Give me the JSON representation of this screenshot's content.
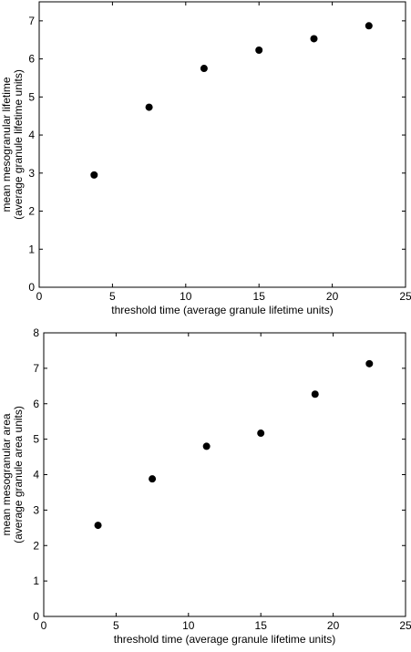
{
  "chart_data": [
    {
      "type": "scatter",
      "xlabel": "threshold time (average granule lifetime units)",
      "ylabel_lines": [
        "mean mesogranular lifetime",
        "(average granule lifetime units)"
      ],
      "xlim": [
        0,
        25
      ],
      "ylim": [
        0,
        7.5
      ],
      "xticks": [
        0,
        5,
        10,
        15,
        20,
        25
      ],
      "yticks": [
        0,
        1,
        2,
        3,
        4,
        5,
        6,
        7
      ],
      "grid": false,
      "marker_color": "#000000",
      "points": [
        {
          "x": 3.75,
          "y": 2.95
        },
        {
          "x": 7.5,
          "y": 4.73
        },
        {
          "x": 11.25,
          "y": 5.75
        },
        {
          "x": 15.0,
          "y": 6.23
        },
        {
          "x": 18.75,
          "y": 6.53
        },
        {
          "x": 22.5,
          "y": 6.87
        }
      ]
    },
    {
      "type": "scatter",
      "xlabel": "threshold time (average granule lifetime units)",
      "ylabel_lines": [
        "mean mesogranular area",
        "(average granule area units)"
      ],
      "xlim": [
        0,
        25
      ],
      "ylim": [
        0,
        8
      ],
      "xticks": [
        0,
        5,
        10,
        15,
        20,
        25
      ],
      "yticks": [
        0,
        1,
        2,
        3,
        4,
        5,
        6,
        7,
        8
      ],
      "grid": false,
      "marker_color": "#000000",
      "points": [
        {
          "x": 3.75,
          "y": 2.57
        },
        {
          "x": 7.5,
          "y": 3.88
        },
        {
          "x": 11.25,
          "y": 4.8
        },
        {
          "x": 15.0,
          "y": 5.17
        },
        {
          "x": 18.75,
          "y": 6.27
        },
        {
          "x": 22.5,
          "y": 7.13
        }
      ]
    }
  ]
}
